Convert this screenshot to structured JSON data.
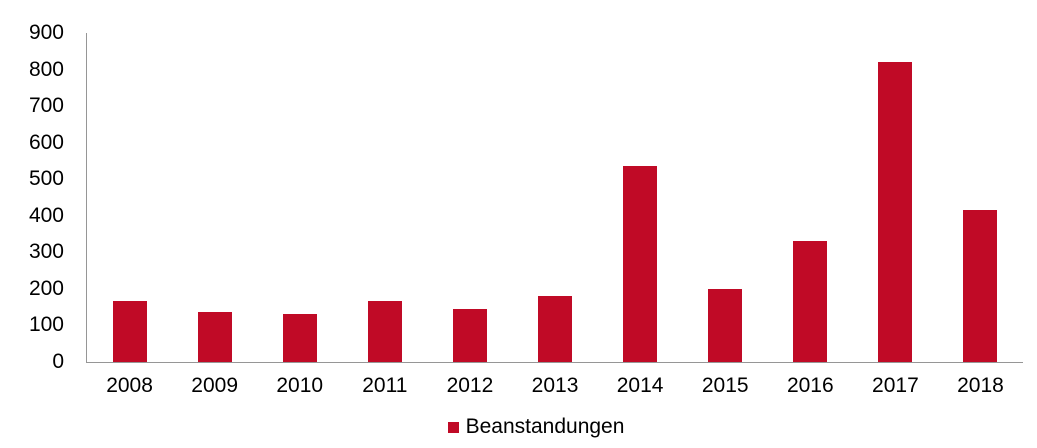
{
  "chart_data": {
    "type": "bar",
    "title": "",
    "categories": [
      "2008",
      "2009",
      "2010",
      "2011",
      "2012",
      "2013",
      "2014",
      "2015",
      "2016",
      "2017",
      "2018"
    ],
    "series": [
      {
        "name": "Beanstandungen",
        "values": [
          166,
          137,
          131,
          168,
          146,
          181,
          535,
          199,
          331,
          822,
          415
        ]
      }
    ],
    "xlabel": "",
    "ylabel": "",
    "ylim": [
      0,
      900
    ],
    "yticks": [
      0,
      100,
      200,
      300,
      400,
      500,
      600,
      700,
      800,
      900
    ],
    "grid": false,
    "legend": {
      "position": "bottom",
      "entries": [
        "Beanstandungen"
      ]
    },
    "colors": {
      "bar": "#C00A26",
      "axis": "#969696",
      "text": "#000000",
      "background": "#FFFFFF"
    }
  }
}
